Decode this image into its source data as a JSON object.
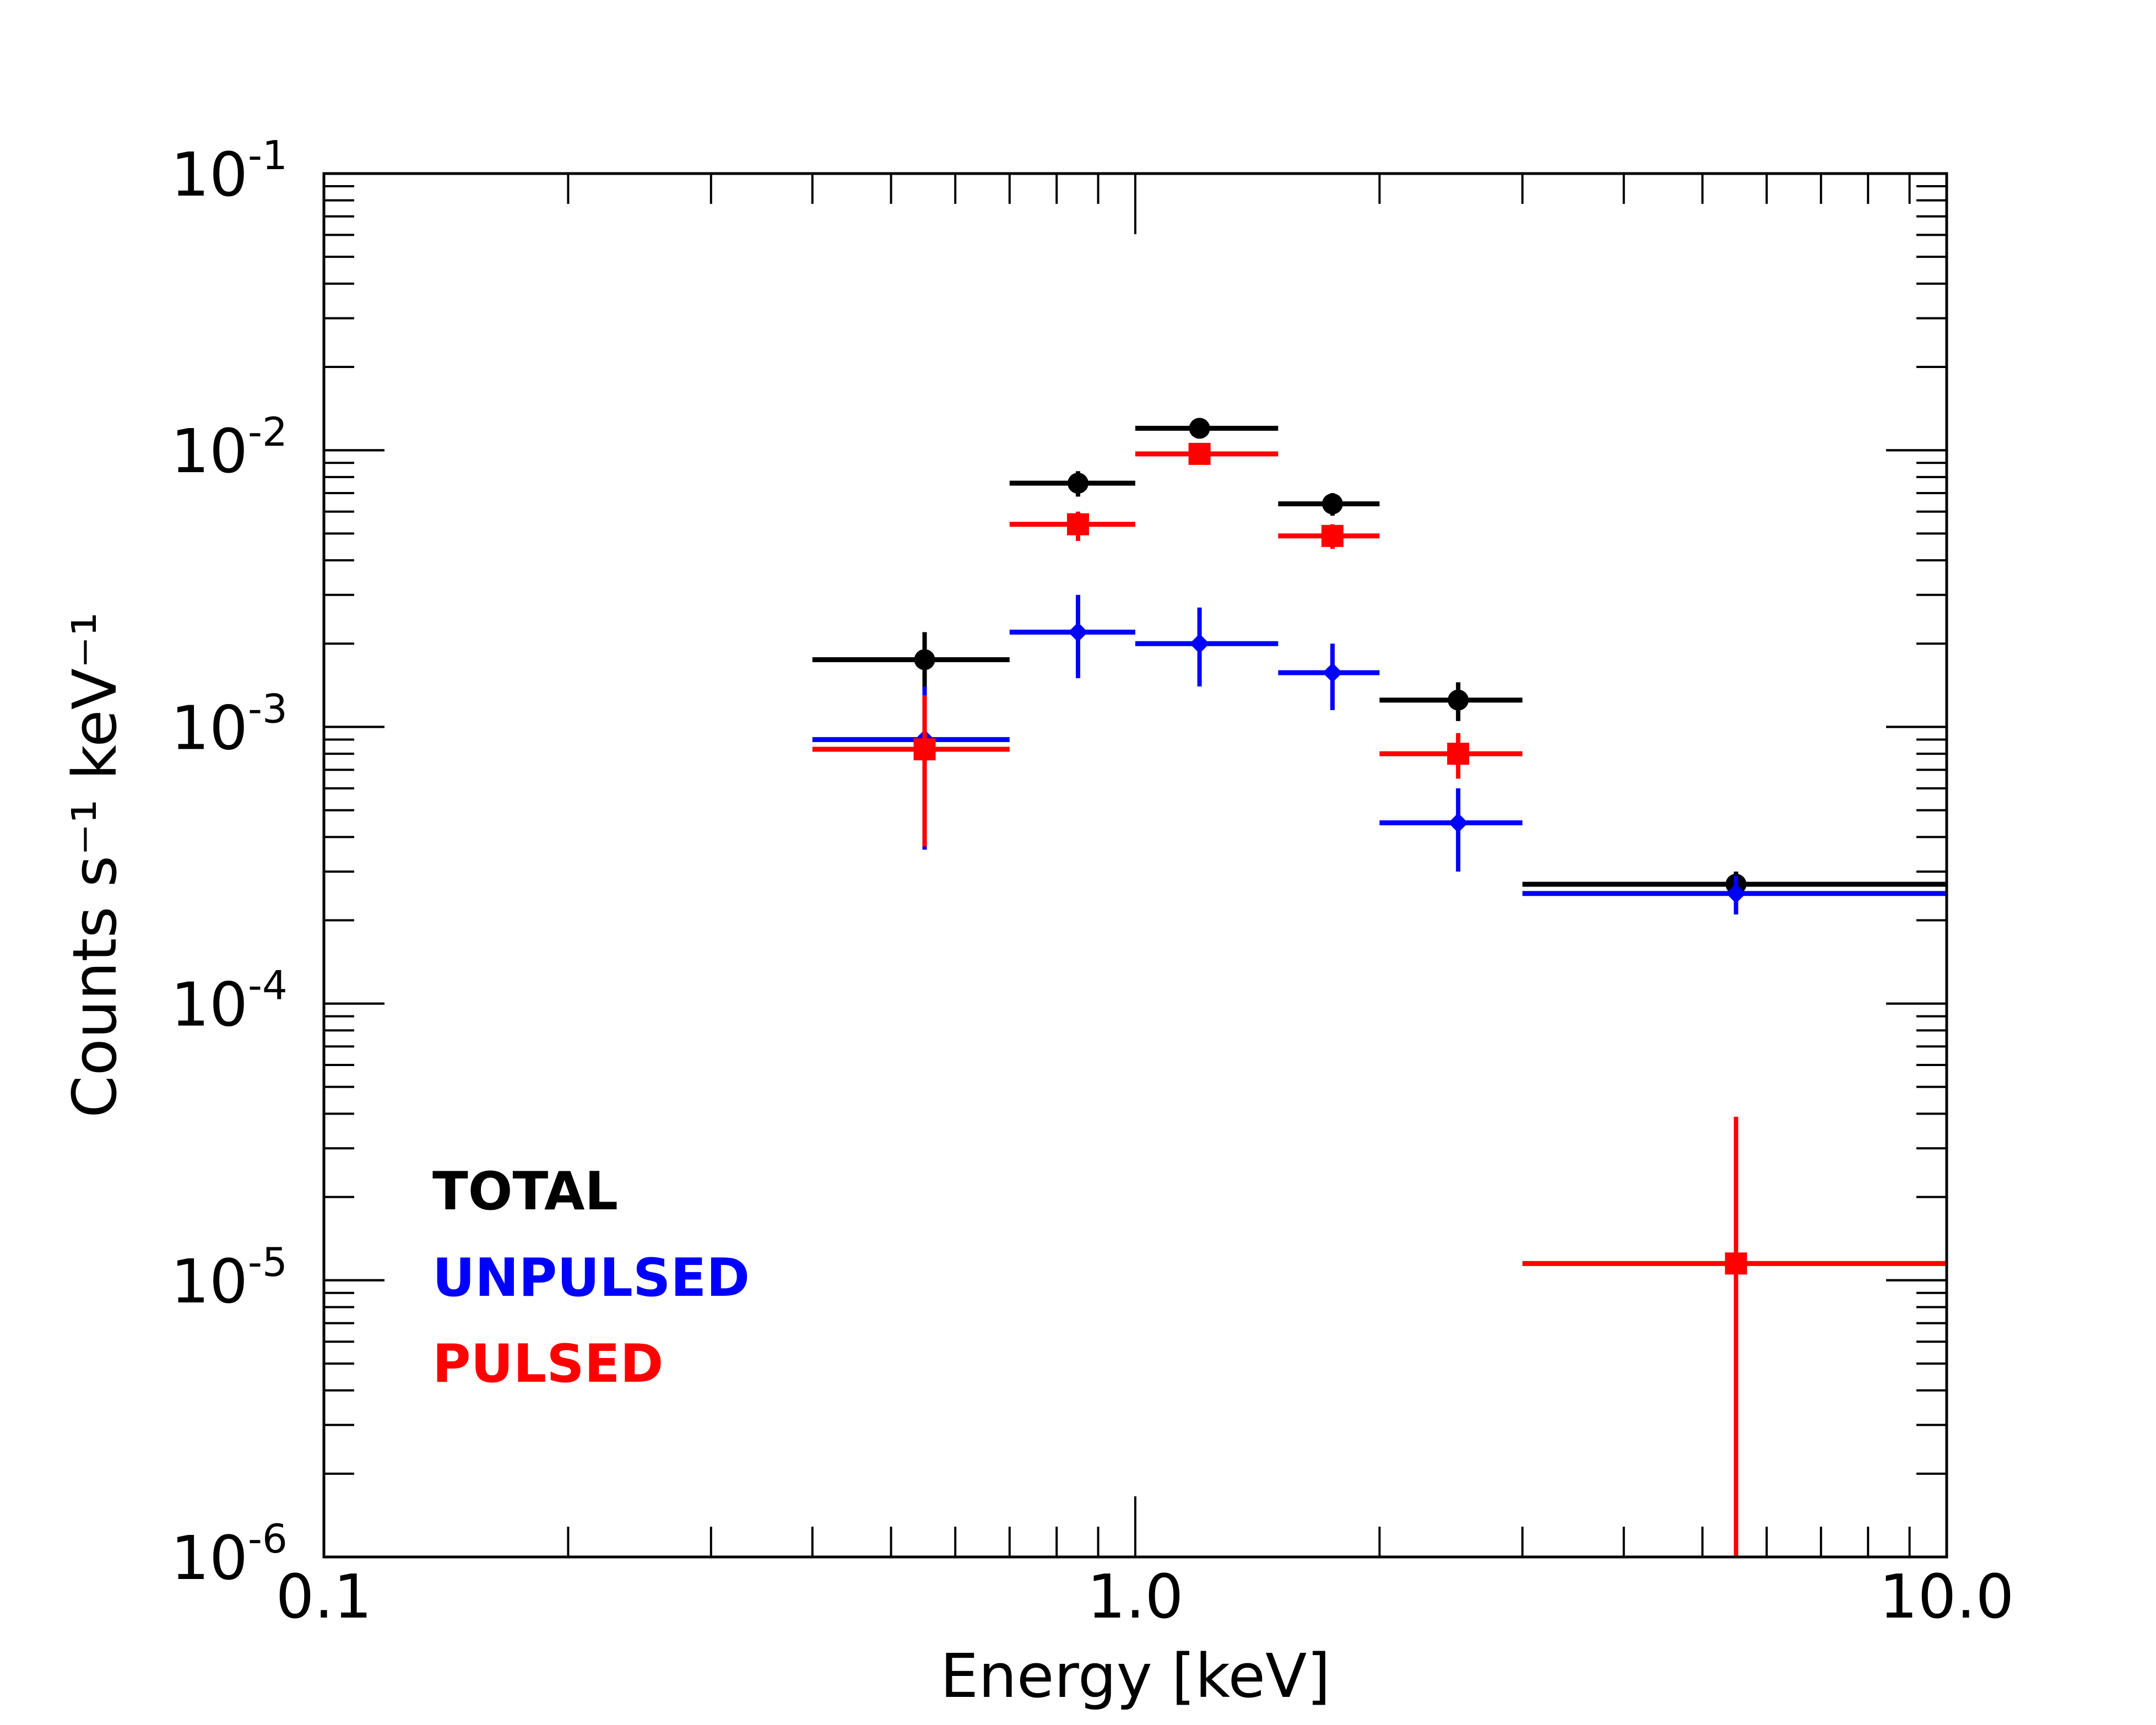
{
  "chart_data": {
    "type": "scatter",
    "title": "",
    "xlabel": "Energy  [keV]",
    "ylabel": "Counts s⁻¹ keV⁻¹",
    "x_scale": "log",
    "y_scale": "log",
    "xlim": [
      0.1,
      10.0
    ],
    "ylim": [
      1e-06,
      0.1
    ],
    "x_tick_labels": [
      {
        "value": 0.1,
        "label": "0.1"
      },
      {
        "value": 1.0,
        "label": "1.0"
      },
      {
        "value": 10.0,
        "label": "10.0"
      }
    ],
    "y_tick_labels": [
      {
        "value": 1e-06,
        "base": "10",
        "exp": "-6"
      },
      {
        "value": 1e-05,
        "base": "10",
        "exp": "-5"
      },
      {
        "value": 0.0001,
        "base": "10",
        "exp": "-4"
      },
      {
        "value": 0.001,
        "base": "10",
        "exp": "-3"
      },
      {
        "value": 0.01,
        "base": "10",
        "exp": "-2"
      },
      {
        "value": 0.1,
        "base": "10",
        "exp": "-1"
      }
    ],
    "legend_position": "bottom-left",
    "series": [
      {
        "name": "TOTAL",
        "color": "#000000",
        "marker": "circle",
        "points": [
          {
            "x": 0.55,
            "xlo": 0.4,
            "xhi": 0.7,
            "y": 0.00175,
            "ylo": 0.00135,
            "yhi": 0.0022
          },
          {
            "x": 0.85,
            "xlo": 0.7,
            "xhi": 1.0,
            "y": 0.0076,
            "ylo": 0.0068,
            "yhi": 0.0084
          },
          {
            "x": 1.2,
            "xlo": 1.0,
            "xhi": 1.5,
            "y": 0.012,
            "ylo": 0.0112,
            "yhi": 0.0128
          },
          {
            "x": 1.75,
            "xlo": 1.5,
            "xhi": 2.0,
            "y": 0.0064,
            "ylo": 0.0058,
            "yhi": 0.007
          },
          {
            "x": 2.5,
            "xlo": 2.0,
            "xhi": 3.0,
            "y": 0.00125,
            "ylo": 0.00105,
            "yhi": 0.00145
          },
          {
            "x": 5.5,
            "xlo": 3.0,
            "xhi": 10.0,
            "y": 0.00027,
            "ylo": 0.00024,
            "yhi": 0.0003
          }
        ]
      },
      {
        "name": "UNPULSED",
        "color": "#0000ff",
        "marker": "diamond",
        "points": [
          {
            "x": 0.55,
            "xlo": 0.4,
            "xhi": 0.7,
            "y": 0.0009,
            "ylo": 0.00036,
            "yhi": 0.0014
          },
          {
            "x": 0.85,
            "xlo": 0.7,
            "xhi": 1.0,
            "y": 0.0022,
            "ylo": 0.0015,
            "yhi": 0.003
          },
          {
            "x": 1.2,
            "xlo": 1.0,
            "xhi": 1.5,
            "y": 0.002,
            "ylo": 0.0014,
            "yhi": 0.0027
          },
          {
            "x": 1.75,
            "xlo": 1.5,
            "xhi": 2.0,
            "y": 0.00157,
            "ylo": 0.00115,
            "yhi": 0.002
          },
          {
            "x": 2.5,
            "xlo": 2.0,
            "xhi": 3.0,
            "y": 0.00045,
            "ylo": 0.0003,
            "yhi": 0.0006
          },
          {
            "x": 5.5,
            "xlo": 3.0,
            "xhi": 10.0,
            "y": 0.00025,
            "ylo": 0.00021,
            "yhi": 0.00029
          }
        ]
      },
      {
        "name": "PULSED",
        "color": "#ff0000",
        "marker": "square",
        "points": [
          {
            "x": 0.55,
            "xlo": 0.4,
            "xhi": 0.7,
            "y": 0.00083,
            "ylo": 0.00037,
            "yhi": 0.0013
          },
          {
            "x": 0.85,
            "xlo": 0.7,
            "xhi": 1.0,
            "y": 0.0054,
            "ylo": 0.0047,
            "yhi": 0.006
          },
          {
            "x": 1.2,
            "xlo": 1.0,
            "xhi": 1.5,
            "y": 0.0097,
            "ylo": 0.0091,
            "yhi": 0.0103
          },
          {
            "x": 1.75,
            "xlo": 1.5,
            "xhi": 2.0,
            "y": 0.0049,
            "ylo": 0.0044,
            "yhi": 0.0054
          },
          {
            "x": 2.5,
            "xlo": 2.0,
            "xhi": 3.0,
            "y": 0.0008,
            "ylo": 0.00065,
            "yhi": 0.00095
          },
          {
            "x": 5.5,
            "xlo": 3.0,
            "xhi": 10.0,
            "y": 1.15e-05,
            "ylo": 1e-06,
            "yhi": 3.9e-05
          }
        ]
      }
    ]
  }
}
